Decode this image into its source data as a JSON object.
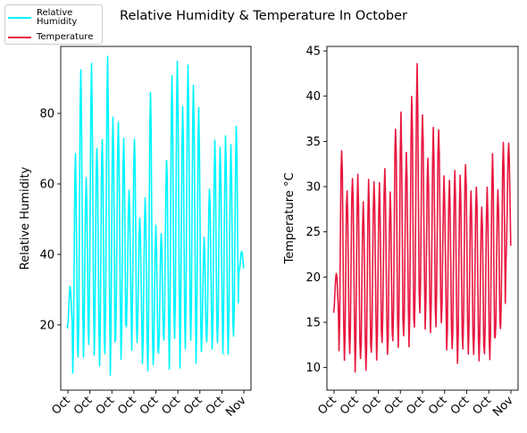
{
  "figure": {
    "title": "Relative Humidity & Temperature In October"
  },
  "legend": {
    "items": [
      {
        "label": "Relative\n Humidity",
        "color": "#00f5ff"
      },
      {
        "label": "Temperature",
        "color": "#e8173f"
      }
    ]
  },
  "chart_data": [
    {
      "type": "line",
      "ylabel": "Relative Humidity",
      "xlabel": "",
      "ylim": [
        1.5,
        99
      ],
      "yticks": [
        20,
        40,
        60,
        80
      ],
      "xticks": [
        "Oct",
        "Oct",
        "Oct",
        "Oct",
        "Oct",
        "Oct",
        "Oct",
        "Oct",
        "Nov"
      ],
      "color": "#00f5ff",
      "series": [
        {
          "name": "Relative\n Humidity",
          "peaks": [
            31,
            68,
            94,
            62,
            94,
            71,
            74,
            94,
            80,
            76,
            74,
            58,
            74,
            50,
            56,
            88,
            48,
            46,
            68,
            91,
            94,
            82,
            94,
            88,
            81,
            44,
            59,
            71,
            71,
            74,
            71,
            75,
            41
          ],
          "troughs": [
            19,
            6,
            10,
            12,
            16,
            12,
            8,
            14,
            6,
            17,
            10,
            20,
            13,
            16,
            10,
            7,
            8,
            12,
            15,
            9,
            16,
            8,
            13,
            15,
            11,
            13,
            16,
            12,
            15,
            12,
            13,
            16,
            35
          ]
        }
      ]
    },
    {
      "type": "line",
      "ylabel": "Temperature °C",
      "xlabel": "",
      "ylim": [
        7.5,
        45.5
      ],
      "yticks": [
        10,
        15,
        20,
        25,
        30,
        35,
        40,
        45
      ],
      "xticks": [
        "Oct",
        "Oct",
        "Oct",
        "Oct",
        "Oct",
        "Oct",
        "Oct",
        "Oct",
        "Nov"
      ],
      "color": "#e8173f",
      "series": [
        {
          "name": "Temperature",
          "peaks": [
            20.5,
            34.5,
            30,
            31,
            31.5,
            28.5,
            30.5,
            30.5,
            30,
            32,
            29,
            37,
            37.5,
            33.5,
            40.5,
            43.5,
            38,
            33,
            36.5,
            36.5,
            31,
            31,
            31.5,
            31,
            33,
            29,
            30.5,
            28,
            30,
            33,
            30,
            35,
            34.5
          ],
          "troughs": [
            16,
            12,
            11,
            12,
            9.5,
            10.5,
            9.5,
            12,
            11,
            12.5,
            11,
            12.5,
            12,
            13,
            12,
            14,
            16,
            14.5,
            14,
            15,
            14.5,
            11.5,
            11.5,
            11,
            12,
            11.5,
            11,
            10.5,
            11,
            10.5,
            13,
            14,
            22
          ]
        }
      ]
    }
  ]
}
